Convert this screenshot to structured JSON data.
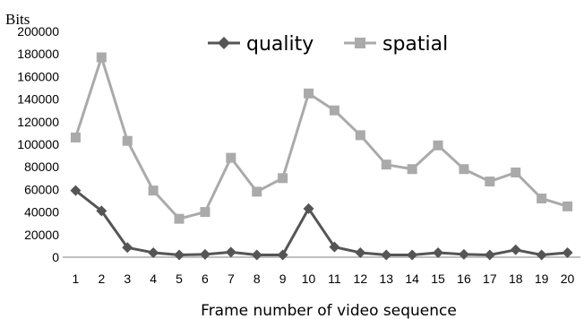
{
  "chart_data": {
    "type": "line",
    "title": "",
    "xlabel": "Frame number of video sequence",
    "ylabel": "Bits",
    "x": [
      "1",
      "2",
      "3",
      "4",
      "5",
      "6",
      "7",
      "8",
      "9",
      "10",
      "11",
      "12",
      "13",
      "14",
      "15",
      "16",
      "17",
      "18",
      "19",
      "20"
    ],
    "ylim": [
      0,
      200000
    ],
    "yticks": [
      "0",
      "20000",
      "40000",
      "60000",
      "80000",
      "100000",
      "120000",
      "140000",
      "160000",
      "180000",
      "200000"
    ],
    "grid": false,
    "legend_position": "top",
    "series": [
      {
        "name": "quality",
        "marker": "diamond",
        "color": "#555555",
        "values": [
          59000,
          41000,
          8500,
          4000,
          2000,
          2500,
          4500,
          2000,
          2000,
          43000,
          9000,
          4000,
          2000,
          2000,
          4000,
          2500,
          2000,
          6500,
          2000,
          4000
        ]
      },
      {
        "name": "spatial",
        "marker": "square",
        "color": "#aaaaaa",
        "values": [
          106000,
          177000,
          103000,
          59000,
          34000,
          40000,
          88000,
          58000,
          70000,
          145000,
          130000,
          108000,
          82000,
          78000,
          99000,
          78000,
          67000,
          75000,
          52000,
          45000
        ]
      }
    ]
  }
}
